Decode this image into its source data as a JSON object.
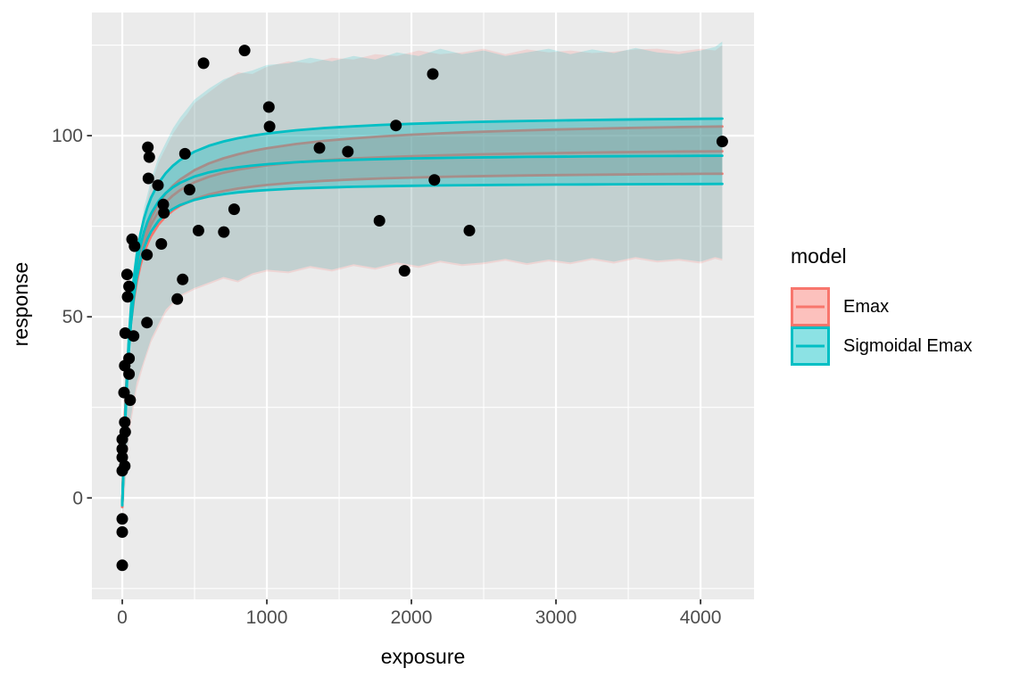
{
  "colors": {
    "figure_background": "#FFFFFF",
    "panel_background": "#EBEBEB",
    "gridline": "#FFFFFF",
    "tick_mark": "#333333",
    "tick_label": "#4D4D4D",
    "point": "#000000",
    "emax": "#F8766D",
    "sigmoid": "#00BFC4"
  },
  "legend": {
    "title": "model",
    "items": [
      {
        "label": "Emax",
        "color": "#F8766D"
      },
      {
        "label": "Sigmoidal Emax",
        "color": "#00BFC4"
      }
    ]
  },
  "chart_data": {
    "type": "line",
    "title": "",
    "xlabel": "exposure",
    "ylabel": "response",
    "x_domain": [
      -210,
      4370
    ],
    "y_domain": [
      -28,
      134
    ],
    "x_major_ticks": [
      0,
      1000,
      2000,
      3000,
      4000
    ],
    "x_tick_labels": [
      "0",
      "1000",
      "2000",
      "3000",
      "4000"
    ],
    "x_minor_ticks": [
      500,
      1500,
      2500,
      3500
    ],
    "y_major_ticks": [
      0,
      50,
      100
    ],
    "y_tick_labels": [
      "0",
      "50",
      "100"
    ],
    "y_minor_ticks": [
      -25,
      25,
      75,
      125
    ],
    "grid": true,
    "legend_position": "right",
    "scatter_points": [
      [
        0,
        16.2
      ],
      [
        0,
        13.5
      ],
      [
        0,
        11.2
      ],
      [
        0,
        7.5
      ],
      [
        0,
        -5.8
      ],
      [
        0,
        -9.4
      ],
      [
        0,
        -18.6
      ],
      [
        12,
        29.1
      ],
      [
        17,
        36.5
      ],
      [
        17,
        20.9
      ],
      [
        17,
        8.8
      ],
      [
        20,
        45.5
      ],
      [
        20,
        18.2
      ],
      [
        33,
        61.7
      ],
      [
        37,
        55.5
      ],
      [
        47,
        38.5
      ],
      [
        47,
        34.2
      ],
      [
        47,
        58.4
      ],
      [
        54,
        27
      ],
      [
        68,
        71.4
      ],
      [
        78,
        44.7
      ],
      [
        85,
        69.5
      ],
      [
        171,
        48.4
      ],
      [
        171,
        67.1
      ],
      [
        177,
        96.8
      ],
      [
        181,
        88.2
      ],
      [
        187,
        94.1
      ],
      [
        247,
        86.3
      ],
      [
        270,
        70.1
      ],
      [
        284,
        81
      ],
      [
        288,
        78.7
      ],
      [
        381,
        54.9
      ],
      [
        418,
        60.3
      ],
      [
        434,
        95
      ],
      [
        465,
        85.1
      ],
      [
        527,
        73.8
      ],
      [
        562,
        120
      ],
      [
        702,
        73.4
      ],
      [
        774,
        79.7
      ],
      [
        846,
        123.5
      ],
      [
        1014,
        107.9
      ],
      [
        1019,
        102.5
      ],
      [
        1364,
        96.6
      ],
      [
        1560,
        95.6
      ],
      [
        1779,
        76.5
      ],
      [
        1893,
        102.8
      ],
      [
        1952,
        62.7
      ],
      [
        2148,
        117
      ],
      [
        2159,
        87.8
      ],
      [
        2401,
        73.8
      ],
      [
        4150,
        98.4
      ]
    ],
    "curve_x_samples": [
      0,
      10,
      20,
      30,
      45,
      60,
      80,
      100,
      125,
      150,
      175,
      200,
      250,
      300,
      350,
      400,
      500,
      600,
      700,
      800,
      900,
      1000,
      1200,
      1400,
      1600,
      1800,
      2000,
      2200,
      2400,
      2600,
      2800,
      3000,
      3200,
      3400,
      3600,
      3800,
      4000,
      4150
    ],
    "models": [
      {
        "name": "Emax",
        "color": "#F8766D",
        "fit": {
          "e0": -2.5,
          "emax": 99.5,
          "ec50": 55,
          "hill": 1,
          "ci_hi": {
            "amp": 8,
            "half": 700
          },
          "ci_lo": {
            "amp": 6.5,
            "half": 200
          }
        },
        "outer_band": {
          "x": [
            0,
            50,
            100,
            150,
            200,
            250,
            300,
            350,
            400,
            450,
            500,
            600,
            700,
            800,
            900,
            1000,
            1150,
            1300,
            1450,
            1600,
            1750,
            1900,
            2050,
            2200,
            2350,
            2500,
            2650,
            2800,
            2950,
            3100,
            3250,
            3400,
            3550,
            3700,
            3850,
            4000,
            4100,
            4150
          ],
          "top": [
            4,
            36,
            63,
            78,
            86.5,
            92.5,
            96.5,
            100.5,
            103.5,
            106,
            109,
            112,
            115,
            117.5,
            117,
            119,
            120.5,
            120,
            121.5,
            121,
            122.5,
            122,
            123.5,
            122.5,
            123,
            124,
            122.5,
            123.8,
            123,
            123.5,
            122.8,
            123.2,
            123.8,
            124,
            123.2,
            124,
            123.5,
            125
          ],
          "bottom": [
            -8,
            18,
            30,
            37,
            43,
            47,
            51,
            53.5,
            55.5,
            56.5,
            57.5,
            59,
            60.5,
            59.5,
            61.5,
            62.5,
            62,
            63.5,
            62.5,
            64,
            63,
            64.5,
            63.5,
            65,
            64,
            64.5,
            65.5,
            64.3,
            65.3,
            64.5,
            65.7,
            64.7,
            66,
            65,
            65.5,
            64.7,
            66,
            65.5
          ]
        }
      },
      {
        "name": "Sigmoidal Emax",
        "color": "#00BFC4",
        "fit": {
          "e0": -2,
          "emax": 97,
          "ec50": 52,
          "hill": 1.18,
          "ci_hi": {
            "amp": 11,
            "half": 300
          },
          "ci_lo": {
            "amp": 8,
            "half": 120
          }
        },
        "outer_band": {
          "x": [
            0,
            50,
            100,
            150,
            200,
            250,
            300,
            350,
            400,
            450,
            500,
            600,
            700,
            800,
            900,
            1000,
            1150,
            1300,
            1450,
            1600,
            1750,
            1900,
            2050,
            2200,
            2350,
            2500,
            2650,
            2800,
            2950,
            3100,
            3250,
            3400,
            3550,
            3700,
            3850,
            4000,
            4100,
            4150
          ],
          "top": [
            5,
            38,
            66,
            80,
            88,
            94,
            98,
            102,
            105,
            107.5,
            110,
            113,
            115.5,
            117,
            118,
            119.5,
            120,
            121.5,
            120.5,
            122,
            121,
            123,
            122,
            124,
            122.5,
            123.5,
            122,
            123,
            124,
            122.5,
            123.8,
            122.8,
            124.2,
            123,
            122.5,
            123.5,
            124.5,
            126
          ],
          "bottom": [
            -6,
            20,
            32,
            38,
            44,
            48,
            52,
            54,
            56,
            57,
            58,
            59.5,
            61,
            60,
            62,
            63,
            62.5,
            64,
            63,
            64.5,
            63.5,
            65,
            64,
            65.5,
            64.5,
            65,
            66,
            64.8,
            65.8,
            65,
            66.2,
            65.2,
            66.5,
            65.5,
            66,
            65.2,
            66.5,
            66
          ]
        }
      }
    ]
  }
}
